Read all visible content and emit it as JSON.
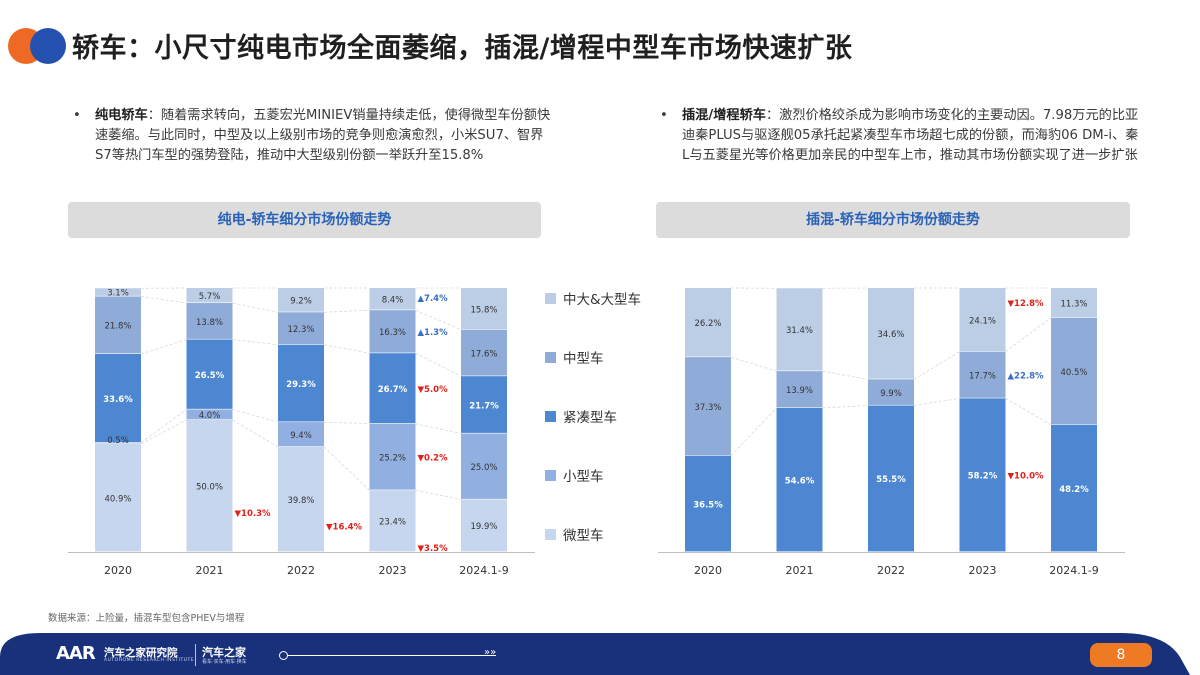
{
  "header": {
    "title": "轿车：小尺寸纯电市场全面萎缩，插混/增程中型车市场快速扩张",
    "logo_colors": [
      "#ee6a24",
      "#2450b0"
    ]
  },
  "bullets": [
    {
      "bold": "纯电轿车",
      "text": "：随着需求转向，五菱宏光MINIEV销量持续走低，使得微型车份额快速萎缩。与此同时，中型及以上级别市场的竞争则愈演愈烈，小米SU7、智界S7等热门车型的强势登陆，推动中大型级别份额一举跃升至15.8%"
    },
    {
      "bold": "插混/增程轿车",
      "text": "：激烈价格绞杀成为影响市场变化的主要动因。7.98万元的比亚迪秦PLUS与驱逐舰05承托起紧凑型车市场超七成的份额，而海豹06 DM-i、秦L与五菱星光等价格更加亲民的中型车上市，推动其市场份额实现了进一步扩张"
    }
  ],
  "bands": [
    "纯电-轿车细分市场份额走势",
    "插混-轿车细分市场份额走势"
  ],
  "legend": [
    {
      "label": "中大&大型车",
      "color": "#bccde6"
    },
    {
      "label": "中型车",
      "color": "#8fabd8"
    },
    {
      "label": "紧凑型车",
      "color": "#4d86d1"
    },
    {
      "label": "小型车",
      "color": "#91afe0"
    },
    {
      "label": "微型车",
      "color": "#c6d6ef"
    }
  ],
  "chart_data": [
    {
      "type": "bar",
      "stacked": true,
      "title": "纯电-轿车细分市场份额走势",
      "categories": [
        "2020",
        "2021",
        "2022",
        "2023",
        "2024.1-9"
      ],
      "series": [
        {
          "name": "微型车",
          "values": [
            40.9,
            50.0,
            39.8,
            23.4,
            19.9
          ]
        },
        {
          "name": "小型车",
          "values": [
            0.5,
            4.0,
            9.4,
            25.2,
            25.0
          ]
        },
        {
          "name": "紧凑型车",
          "values": [
            33.6,
            26.5,
            29.3,
            26.7,
            21.7
          ]
        },
        {
          "name": "中型车",
          "values": [
            21.8,
            13.8,
            12.3,
            16.3,
            17.6
          ]
        },
        {
          "name": "中大&大型车",
          "values": [
            3.1,
            5.7,
            9.2,
            8.4,
            15.8
          ]
        }
      ],
      "annotations": [
        {
          "category": "2021",
          "series": "微型车",
          "text": "▼10.3%",
          "direction": "down"
        },
        {
          "category": "2022",
          "series": "微型车",
          "text": "▼16.4%",
          "direction": "down"
        },
        {
          "category": "2023",
          "series": "微型车",
          "text": "▼3.5%",
          "direction": "down"
        },
        {
          "category": "2023",
          "series": "小型车",
          "text": "▼0.2%",
          "direction": "down"
        },
        {
          "category": "2023",
          "series": "紧凑型车",
          "text": "▼5.0%",
          "direction": "down"
        },
        {
          "category": "2023",
          "series": "中型车",
          "text": "▲1.3%",
          "direction": "up"
        },
        {
          "category": "2023",
          "series": "中大&大型车",
          "text": "▲7.4%",
          "direction": "up"
        }
      ]
    },
    {
      "type": "bar",
      "stacked": true,
      "title": "插混-轿车细分市场份额走势",
      "categories": [
        "2020",
        "2021",
        "2022",
        "2023",
        "2024.1-9"
      ],
      "series": [
        {
          "name": "紧凑型车",
          "values": [
            36.5,
            54.6,
            55.5,
            58.2,
            48.2
          ]
        },
        {
          "name": "中型车",
          "values": [
            37.3,
            13.9,
            9.9,
            17.7,
            40.5
          ]
        },
        {
          "name": "中大&大型车",
          "values": [
            26.2,
            31.4,
            34.6,
            24.1,
            11.3
          ]
        }
      ],
      "annotations": [
        {
          "category": "2023",
          "series": "紧凑型车",
          "text": "▼10.0%",
          "direction": "down"
        },
        {
          "category": "2023",
          "series": "中型车",
          "text": "▲22.8%",
          "direction": "up"
        },
        {
          "category": "2023",
          "series": "中大&大型车",
          "text": "▼12.8%",
          "direction": "down"
        }
      ]
    }
  ],
  "source": "数据来源：上险量，插混车型包含PHEV与增程",
  "footer": {
    "logo_text": "AAR",
    "institute": "汽车之家研究院",
    "institute_sub": "AUTOHOME RESEARCH INSTITUTE",
    "brand": "汽车之家",
    "brand_sub": "看车·买车·用车·换车",
    "arrows": "»»",
    "page": "8"
  }
}
